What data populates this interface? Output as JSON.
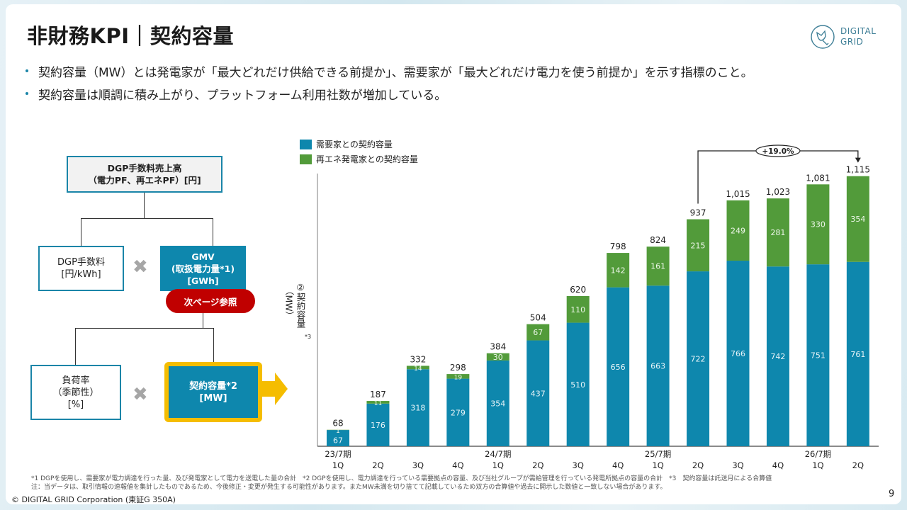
{
  "page": {
    "title": "非財務KPI｜契約容量",
    "logo": {
      "line1": "DIGITAL",
      "line2": "GRID"
    },
    "bullets": [
      "契約容量（MW）とは発電家が「最大どれだけ供給できる前提か」、需要家が「最大どれだけ電力を使う前提か」を示す指標のこと。",
      "契約容量は順調に積み上がり、プラットフォーム利用社数が増加している。"
    ],
    "tree": {
      "root": {
        "line1": "DGP手数料売上高",
        "line2": "（電力PF、再エネPF）[円]"
      },
      "fee": {
        "line1": "DGP手数料",
        "line2": "[円/kWh]"
      },
      "gmv": {
        "line1": "GMV",
        "line2": "(取扱電力量*1)",
        "line3": "[GWh]"
      },
      "next_page": "次ページ参照",
      "load": {
        "line1": "負荷率",
        "line2": "（季節性）",
        "line3": "[%]"
      },
      "capacity": {
        "line1": "契約容量*2",
        "line2": "[MW]"
      },
      "multiply": "✖"
    },
    "footnotes": [
      "*1 DGPを使用し、需要家が電力調達を行った量、及び発電家として電力を送電した量の合計　*2 DGPを使用し、電力調達を行っている需要拠点の容量、及び当社グループが需給管理を行っている発電所拠点の容量の合計　*3　契約容量は託送月による合算値",
      "注：当データは、取引情報の速報値を集計したものであるため、今後修正・変更が発生する可能性があります。またMW未満を切り捨てて記載しているため双方の合算値や過去に開示した数値と一致しない場合があります。"
    ],
    "copyright": "© DIGITAL GRID Corporation (東証G 350A)",
    "page_number": "9",
    "colors": {
      "demand": "#0e87ad",
      "renewable": "#529b3a",
      "highlight": "#f5bd00",
      "pill": "#c00000"
    }
  },
  "chart_data": {
    "type": "bar",
    "stacked": true,
    "title": "",
    "ylabel": "②契約容量（MW）*3",
    "xlabel": "",
    "ylim": [
      0,
      1200
    ],
    "grid": false,
    "legend_position": "top-left",
    "categories": [
      "1Q",
      "2Q",
      "3Q",
      "4Q",
      "1Q",
      "2Q",
      "3Q",
      "4Q",
      "1Q",
      "2Q",
      "3Q",
      "4Q",
      "1Q",
      "2Q"
    ],
    "period_labels": [
      "23/7期",
      "",
      "",
      "",
      "24/7期",
      "",
      "",
      "",
      "25/7期",
      "",
      "",
      "",
      "26/7期",
      ""
    ],
    "series": [
      {
        "name": "需要家との契約容量",
        "color": "#0e87ad",
        "values": [
          67,
          176,
          318,
          279,
          354,
          437,
          510,
          656,
          663,
          722,
          766,
          742,
          751,
          761
        ]
      },
      {
        "name": "再エネ発電家との契約容量",
        "color": "#529b3a",
        "values": [
          1,
          11,
          14,
          19,
          30,
          67,
          110,
          142,
          161,
          215,
          249,
          281,
          330,
          354
        ]
      }
    ],
    "totals": [
      "68",
      "187",
      "332",
      "298",
      "384",
      "504",
      "620",
      "798",
      "824",
      "937",
      "1,015",
      "1,023",
      "1,081",
      "1,115"
    ],
    "total_values": [
      68,
      187,
      332,
      298,
      384,
      504,
      620,
      798,
      824,
      937,
      1015,
      1023,
      1081,
      1115
    ],
    "annotation": {
      "label": "+19.0%",
      "from_index": 9,
      "to_index": 13
    }
  }
}
